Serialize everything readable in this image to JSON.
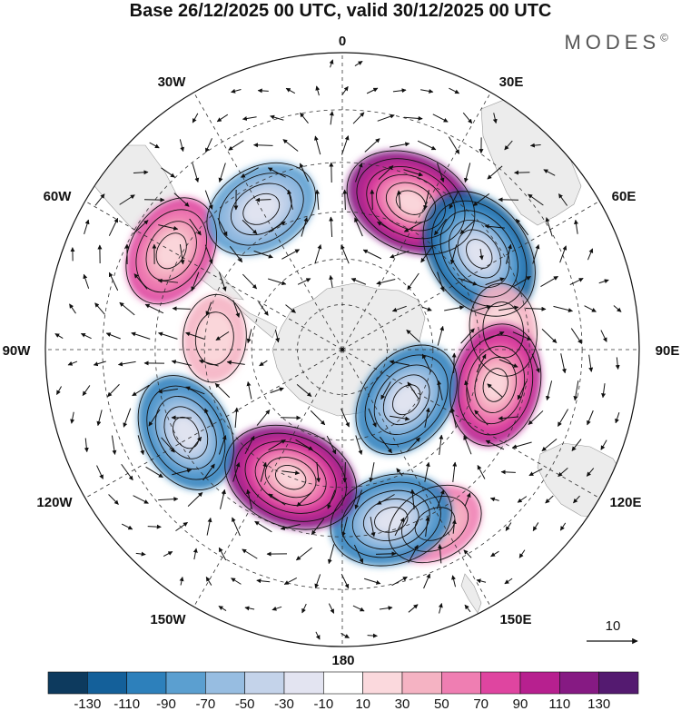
{
  "title": "Base 26/12/2025 00 UTC, valid 30/12/2025 00 UTC",
  "brand": "MODES",
  "brand_mark": "©",
  "longitude_labels": {
    "n0": "0",
    "n30e": "30E",
    "n60e": "60E",
    "n90e": "90E",
    "n120e": "120E",
    "n150e": "150E",
    "n180": "180",
    "n150w": "150W",
    "n120w": "120W",
    "n90w": "90W",
    "n60w": "60W",
    "n30w": "30W"
  },
  "reference_vector": {
    "label": "10"
  },
  "colorbar": {
    "colors": [
      "#0d3a5e",
      "#14609a",
      "#2d80bb",
      "#5b9fd0",
      "#97bde1",
      "#c4d3ea",
      "#e3e4f1",
      "#ffffff",
      "#fbd9dd",
      "#f5b3c3",
      "#ef7eb2",
      "#df45a0",
      "#b7208f",
      "#861a83",
      "#541a70"
    ],
    "labels": [
      "-130",
      "-110",
      "-90",
      "-70",
      "-50",
      "-30",
      "-10",
      "10",
      "30",
      "50",
      "70",
      "90",
      "110",
      "130"
    ]
  },
  "anomaly_centers": [
    {
      "lon": 25,
      "lat": -55,
      "value": 120
    },
    {
      "lon": 55,
      "lat": -54,
      "value": -125
    },
    {
      "lon": 83,
      "lat": -55,
      "value": 40
    },
    {
      "lon": 103,
      "lat": -56,
      "value": 100
    },
    {
      "lon": 128,
      "lat": -72,
      "value": -95
    },
    {
      "lon": 152,
      "lat": -48,
      "value": 50
    },
    {
      "lon": 164,
      "lat": -52,
      "value": -100
    },
    {
      "lon": -158,
      "lat": -60,
      "value": 125
    },
    {
      "lon": -118,
      "lat": -52,
      "value": -95
    },
    {
      "lon": -85,
      "lat": -62,
      "value": 30
    },
    {
      "lon": -60,
      "lat": -48,
      "value": 80
    },
    {
      "lon": -30,
      "lat": -55,
      "value": -85
    }
  ]
}
